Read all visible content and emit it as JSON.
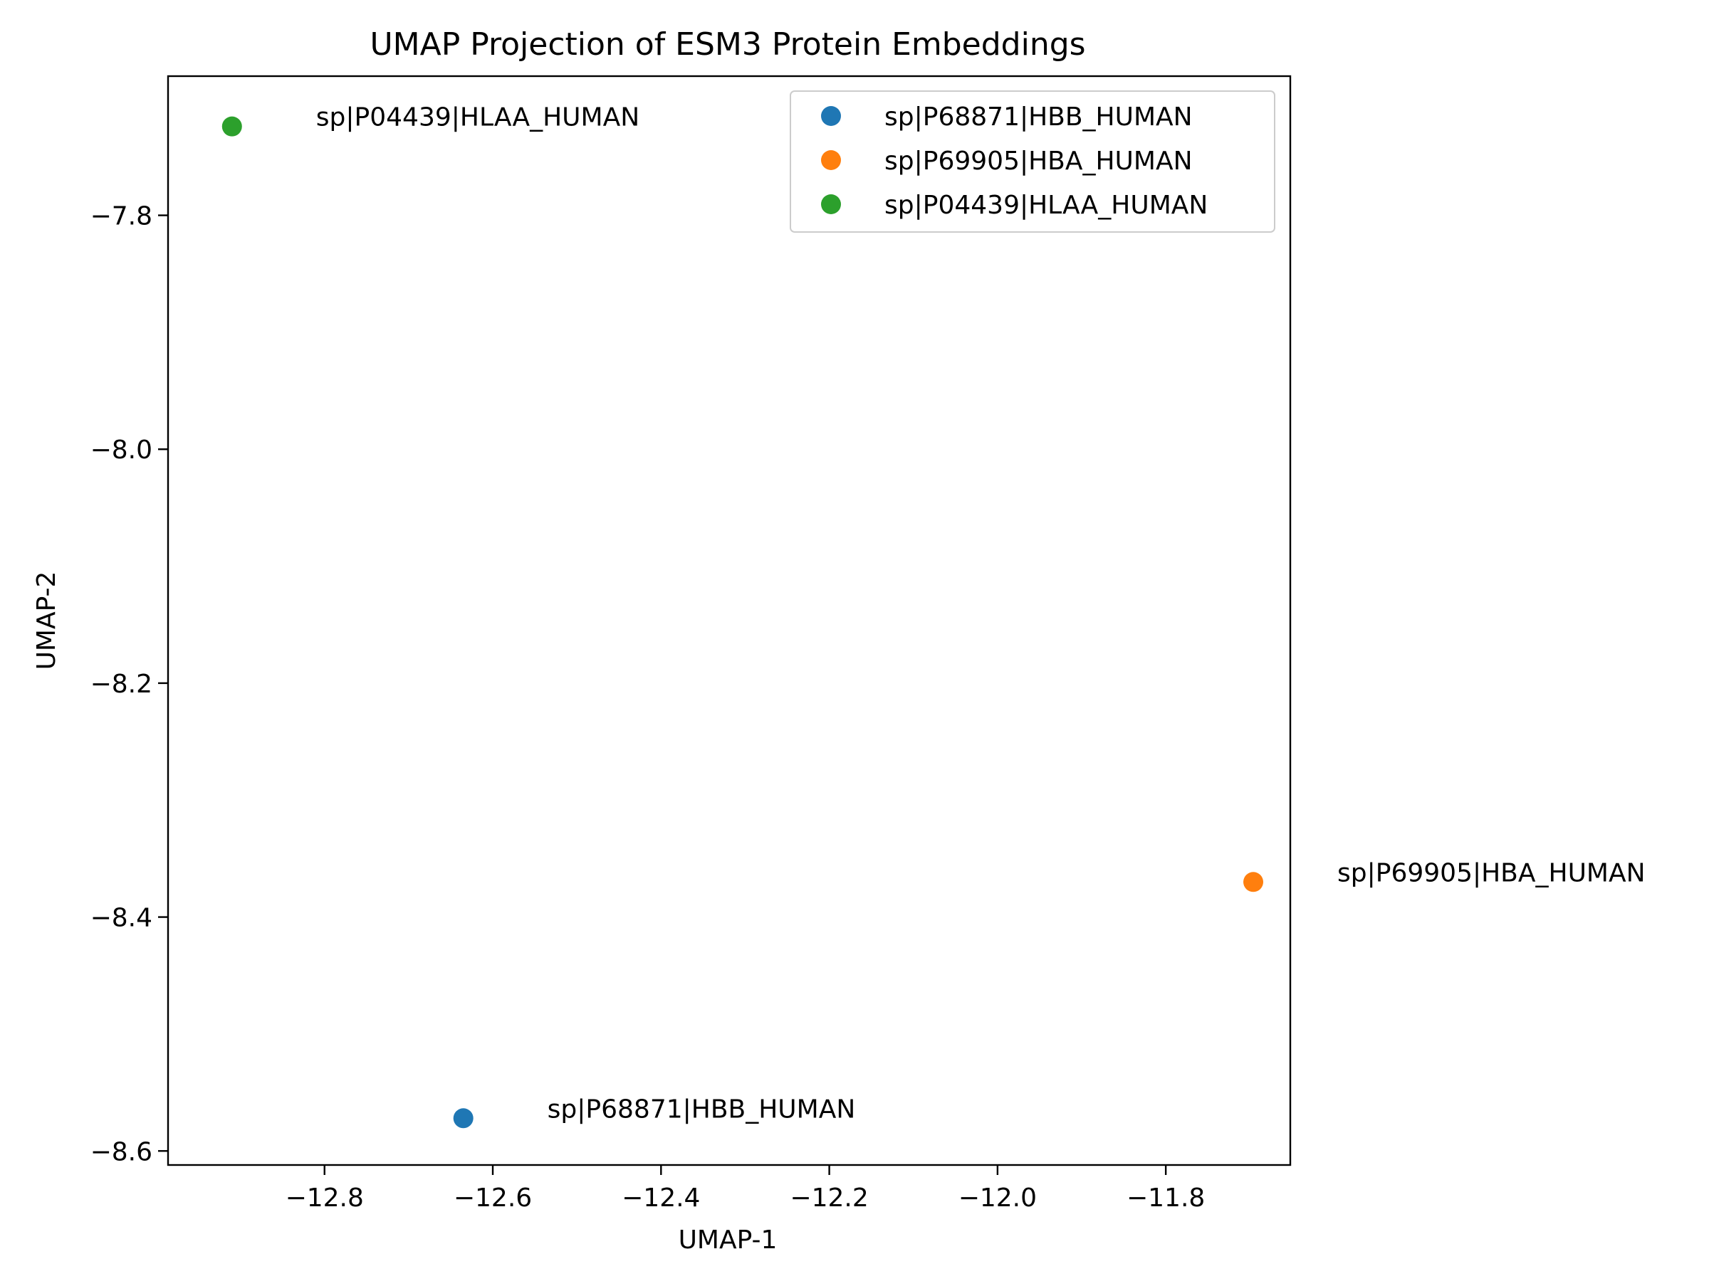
{
  "chart_data": {
    "type": "scatter",
    "title": "UMAP Projection of ESM3 Protein Embeddings",
    "xlabel": "UMAP-1",
    "ylabel": "UMAP-2",
    "xlim": [
      -12.986,
      -11.652
    ],
    "ylim": [
      -8.612,
      -7.681
    ],
    "x_ticks": [
      -12.8,
      -12.6,
      -12.4,
      -12.2,
      -12.0,
      -11.8
    ],
    "x_tick_labels": [
      "−12.8",
      "−12.6",
      "−12.4",
      "−12.2",
      "−12.0",
      "−11.8"
    ],
    "y_ticks": [
      -7.8,
      -8.0,
      -8.2,
      -8.4,
      -8.6
    ],
    "y_tick_labels": [
      "−7.8",
      "−8.0",
      "−8.2",
      "−8.4",
      "−8.6"
    ],
    "grid": false,
    "legend_position": "top-right",
    "series": [
      {
        "name": "sp|P68871|HBB_HUMAN",
        "color": "#1f77b4",
        "x": [
          -12.635
        ],
        "y": [
          -8.572
        ],
        "label": "sp|P68871|HBB_HUMAN"
      },
      {
        "name": "sp|P69905|HBA_HUMAN",
        "color": "#ff7f0e",
        "x": [
          -11.696
        ],
        "y": [
          -8.37
        ],
        "label": "sp|P69905|HBA_HUMAN"
      },
      {
        "name": "sp|P04439|HLAA_HUMAN",
        "color": "#2ca02c",
        "x": [
          -12.91
        ],
        "y": [
          -7.724
        ],
        "label": "sp|P04439|HLAA_HUMAN"
      }
    ]
  }
}
